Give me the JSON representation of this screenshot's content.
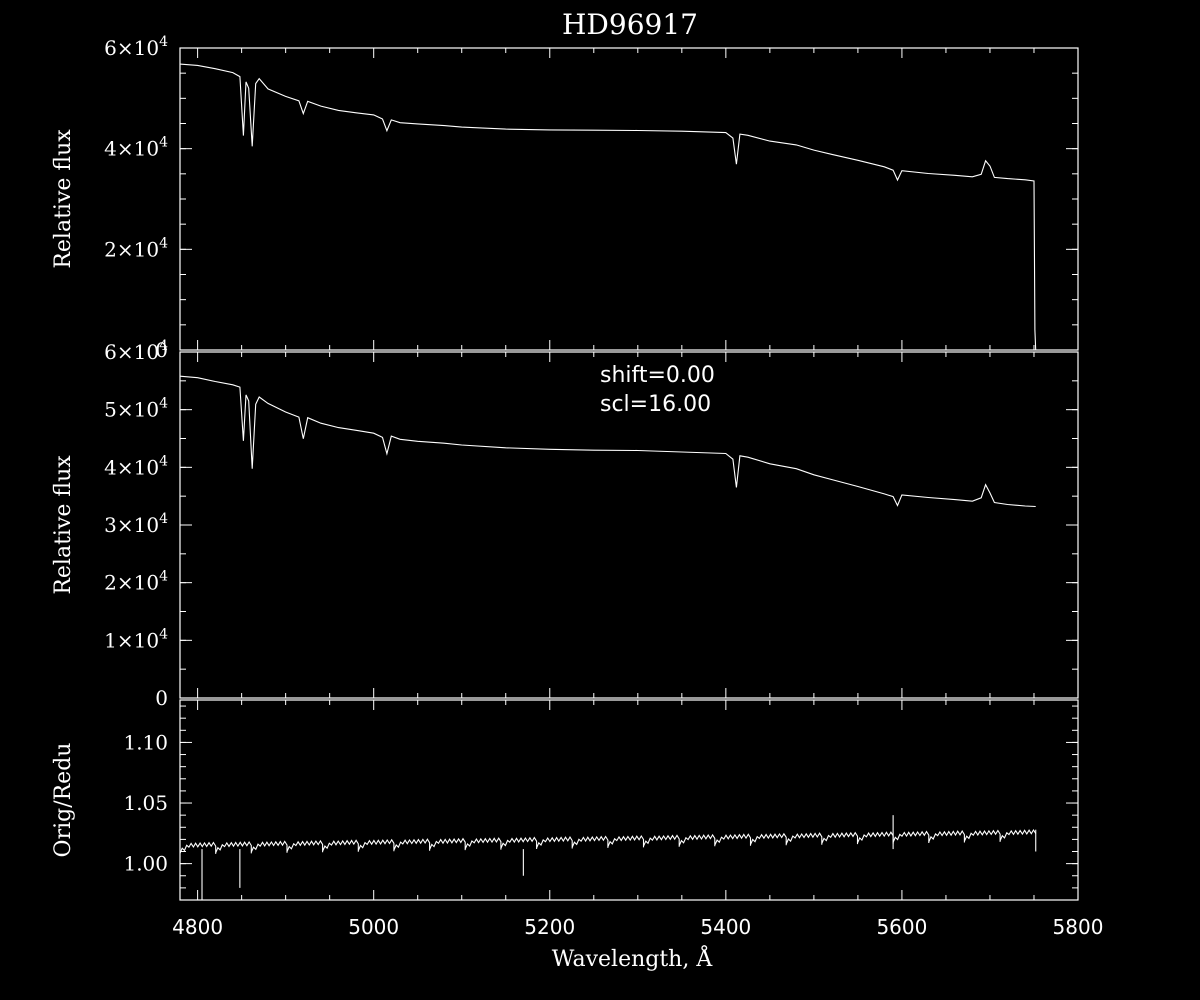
{
  "title": "HD96917",
  "xlabel": "Wavelength, Å",
  "x_ticks": [
    "4800",
    "5000",
    "5200",
    "5400",
    "5600",
    "5800"
  ],
  "colors": {
    "background": "#000000",
    "foreground": "#ffffff"
  },
  "chart_data": [
    {
      "type": "line",
      "panel": "top",
      "ylabel": "Relative flux",
      "xlim": [
        4780,
        5800
      ],
      "ylim": [
        0,
        60000
      ],
      "y_ticks": [
        {
          "value": 0,
          "label": "0",
          "exp": ""
        },
        {
          "value": 20000,
          "label": "2×10",
          "exp": "4"
        },
        {
          "value": 40000,
          "label": "4×10",
          "exp": "4"
        },
        {
          "value": 60000,
          "label": "6×10",
          "exp": "4"
        }
      ],
      "series": [
        {
          "x": [
            4780,
            4800,
            4820,
            4840,
            4848,
            4852,
            4855,
            4858,
            4862,
            4866,
            4870,
            4880,
            4900,
            4915,
            4920,
            4925,
            4940,
            4960,
            4980,
            5000,
            5010,
            5015,
            5020,
            5030,
            5050,
            5080,
            5100,
            5150,
            5200,
            5250,
            5300,
            5350,
            5400,
            5408,
            5412,
            5416,
            5425,
            5450,
            5480,
            5500,
            5520,
            5550,
            5580,
            5590,
            5595,
            5600,
            5630,
            5660,
            5680,
            5690,
            5695,
            5700,
            5705,
            5720,
            5740,
            5750,
            5751,
            5752
          ],
          "y": [
            56800,
            56500,
            55800,
            55000,
            54200,
            42500,
            53200,
            52000,
            40500,
            53000,
            54000,
            52000,
            50500,
            49600,
            47000,
            49400,
            48400,
            47500,
            47000,
            46600,
            45800,
            43500,
            45700,
            45200,
            45000,
            44700,
            44400,
            44000,
            43800,
            43700,
            43600,
            43400,
            43100,
            42000,
            36800,
            42800,
            42600,
            41500,
            40800,
            39800,
            39000,
            37800,
            36500,
            35800,
            33800,
            35600,
            35000,
            34600,
            34300,
            34800,
            37500,
            36500,
            34300,
            34100,
            33900,
            33700,
            4000,
            0
          ]
        }
      ]
    },
    {
      "type": "line",
      "panel": "middle",
      "ylabel": "Relative flux",
      "xlim": [
        4780,
        5800
      ],
      "ylim": [
        0,
        60000
      ],
      "annotations": [
        "shift=0.00",
        "scl=16.00"
      ],
      "y_ticks": [
        {
          "value": 0,
          "label": "0",
          "exp": ""
        },
        {
          "value": 10000,
          "label": "1×10",
          "exp": "4"
        },
        {
          "value": 20000,
          "label": "2×10",
          "exp": "4"
        },
        {
          "value": 30000,
          "label": "3×10",
          "exp": "4"
        },
        {
          "value": 40000,
          "label": "4×10",
          "exp": "4"
        },
        {
          "value": 50000,
          "label": "5×10",
          "exp": "4"
        },
        {
          "value": 60000,
          "label": "6×10",
          "exp": "4"
        }
      ],
      "series": [
        {
          "x": [
            4780,
            4800,
            4820,
            4840,
            4848,
            4852,
            4855,
            4858,
            4862,
            4866,
            4870,
            4880,
            4900,
            4915,
            4920,
            4925,
            4940,
            4960,
            4980,
            5000,
            5010,
            5015,
            5020,
            5030,
            5050,
            5080,
            5100,
            5150,
            5200,
            5250,
            5300,
            5350,
            5400,
            5408,
            5412,
            5416,
            5425,
            5450,
            5480,
            5500,
            5520,
            5550,
            5580,
            5590,
            5595,
            5600,
            5630,
            5660,
            5680,
            5690,
            5695,
            5700,
            5705,
            5720,
            5740,
            5752
          ],
          "y": [
            55800,
            55500,
            54800,
            54200,
            53800,
            44500,
            52500,
            51500,
            39800,
            51000,
            52300,
            51200,
            49700,
            48800,
            45000,
            48600,
            47600,
            46800,
            46300,
            45800,
            45100,
            42300,
            45400,
            44900,
            44600,
            44300,
            44000,
            43500,
            43200,
            43000,
            42900,
            42600,
            42300,
            41300,
            36400,
            41900,
            41700,
            40600,
            39800,
            38800,
            38000,
            36800,
            35500,
            35000,
            33400,
            35200,
            34700,
            34300,
            34000,
            34600,
            36900,
            35500,
            33900,
            33600,
            33300,
            33200
          ]
        }
      ]
    },
    {
      "type": "line",
      "panel": "bottom",
      "ylabel": "Orig/Redu",
      "xlim": [
        4780,
        5800
      ],
      "ylim": [
        0.97,
        1.135
      ],
      "y_ticks": [
        {
          "value": 1.0,
          "label": "1.00",
          "exp": ""
        },
        {
          "value": 1.05,
          "label": "1.05",
          "exp": ""
        },
        {
          "value": 1.1,
          "label": "1.10",
          "exp": ""
        }
      ],
      "orders": {
        "start": 4780,
        "width": 40.5,
        "count": 24,
        "base": 1.01,
        "amplitude": 0.006,
        "growth": 0.00045
      },
      "spikes": [
        {
          "x": 4805,
          "y": 0.96
        },
        {
          "x": 4848,
          "y": 0.98
        },
        {
          "x": 5170,
          "y": 0.99
        },
        {
          "x": 5590,
          "y": 1.04
        }
      ]
    }
  ]
}
